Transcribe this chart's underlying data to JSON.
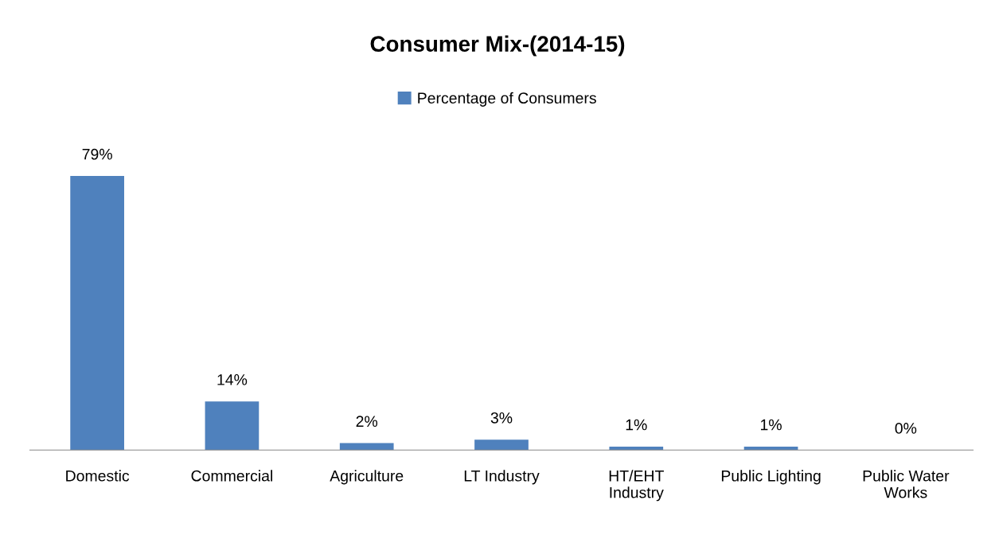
{
  "chart_data": {
    "type": "bar",
    "title": "Consumer Mix-(2014-15)",
    "categories": [
      "Domestic",
      "Commercial",
      "Agriculture",
      "LT Industry",
      "HT/EHT\nIndustry",
      "Public Lighting",
      "Public Water\nWorks"
    ],
    "series": [
      {
        "name": "Percentage of Consumers",
        "color": "#4f81bd",
        "values": [
          79,
          14,
          2,
          3,
          1,
          1,
          0
        ],
        "value_labels": [
          "79%",
          "14%",
          "2%",
          "3%",
          "1%",
          "1%",
          "0%"
        ]
      }
    ],
    "legend": "top",
    "grid": false
  }
}
